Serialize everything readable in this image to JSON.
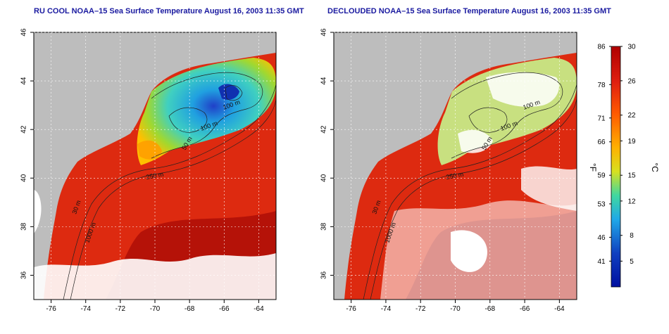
{
  "panels": [
    {
      "title": "RU COOL NOAA–15 Sea Surface Temperature August 16, 2003 11:35 GMT",
      "x_ticks": [
        "-76",
        "-74",
        "-72",
        "-70",
        "-68",
        "-66",
        "-64"
      ],
      "y_ticks": [
        "46",
        "44",
        "42",
        "40",
        "38",
        "36"
      ],
      "contour_labels": [
        "100 m",
        "100 m",
        "50 m",
        "250 m",
        "30 m",
        "1000 m"
      ]
    },
    {
      "title": "DECLOUDED NOAA–15 Sea Surface Temperature August 16, 2003 11:35 GMT",
      "x_ticks": [
        "-76",
        "-74",
        "-72",
        "-70",
        "-68",
        "-66",
        "-64"
      ],
      "y_ticks": [
        "46",
        "44",
        "42",
        "40",
        "38",
        "36"
      ],
      "contour_labels": [
        "100 m",
        "100 m",
        "50 m",
        "250 m",
        "30 m",
        "1000 m"
      ]
    }
  ],
  "colorbar": {
    "f_unit": "°F",
    "c_unit": "°C",
    "f_ticks": [
      "86",
      "78",
      "71",
      "66",
      "59",
      "53",
      "46",
      "41"
    ],
    "c_ticks": [
      "30",
      "26",
      "22",
      "19",
      "15",
      "12",
      "8",
      "5"
    ],
    "colors": [
      "#b00000",
      "#e02010",
      "#ff5a00",
      "#ffb000",
      "#d8e020",
      "#40d8a0",
      "#20a8e8",
      "#1040c0",
      "#0010a0"
    ]
  },
  "colors": {
    "land": "#bdbdbd",
    "warm_sea": "#dd2a10",
    "deep_sea": "#b51208",
    "cloud": "#ffffff"
  }
}
